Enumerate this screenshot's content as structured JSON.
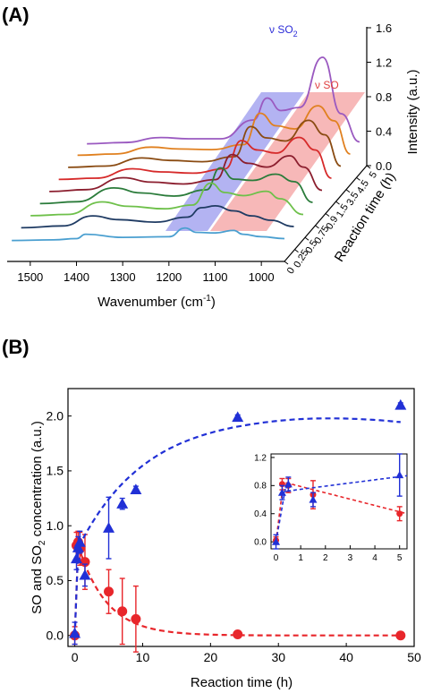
{
  "panel_a": {
    "label": "(A)",
    "xlabel_main": "Wavenumber (cm",
    "xlabel_sup": "-1",
    "xlabel_end": ")",
    "zlabel": "Intensity (a.u.)",
    "ylabel": "Reaction time (h)",
    "band_so2_prefix": "ν SO",
    "band_so2_sub": "2",
    "band_so": "ν SO",
    "x_ticks": [
      "1500",
      "1400",
      "1300",
      "1200",
      "1100",
      "1000"
    ],
    "z_ticks": [
      "0.0",
      "0.4",
      "0.8",
      "1.2",
      "1.6"
    ],
    "time_ticks": [
      "0",
      "0.25",
      "0.5",
      "0.75",
      "0.9",
      "1.5",
      "3.5",
      "4.5",
      "5"
    ],
    "colors": [
      "#4a9fd0",
      "#1f3b63",
      "#6ec04a",
      "#2a7b3a",
      "#8b1e2e",
      "#d62a2a",
      "#8a4b12",
      "#e0801f",
      "#9a59c0"
    ],
    "so2_band_color": "#9999ee",
    "so_band_color": "#f4a0a0"
  },
  "panel_b": {
    "label": "(B)",
    "ylabel_part1": "SO and SO",
    "ylabel_sub": "2",
    "ylabel_part2": " concentration (a.u.)",
    "xlabel": "Reaction time (h)",
    "x_ticks": [
      "0",
      "10",
      "20",
      "30",
      "40",
      "50"
    ],
    "y_ticks": [
      "0.0",
      "0.5",
      "1.0",
      "1.5",
      "2.0"
    ],
    "inset_x_ticks": [
      "0",
      "1",
      "2",
      "3",
      "4",
      "5"
    ],
    "inset_y_ticks": [
      "0.0",
      "0.4",
      "0.8",
      "1.2"
    ],
    "so_color": "#e8262b",
    "so2_color": "#2130d6"
  },
  "chart_data": [
    {
      "type": "line",
      "title": "",
      "xlabel": "Wavenumber (cm-1)",
      "ylabel": "Reaction time (h)",
      "zlabel": "Intensity (a.u.)",
      "xlim": [
        1550,
        950
      ],
      "zlim": [
        0,
        1.6
      ],
      "series": [
        {
          "name": "0",
          "x": [
            1540,
            1450,
            1400,
            1380,
            1300,
            1200,
            1165,
            1140,
            1100,
            1060,
            1040,
            1000,
            950
          ],
          "values": [
            0.02,
            0.03,
            0.05,
            0.12,
            0.07,
            0.08,
            0.22,
            0.15,
            0.14,
            0.18,
            0.12,
            0.08,
            0.05
          ]
        },
        {
          "name": "0.25",
          "x": [
            1540,
            1450,
            1385,
            1330,
            1250,
            1180,
            1150,
            1120,
            1080,
            1040,
            1000,
            950
          ],
          "values": [
            0.03,
            0.06,
            0.22,
            0.16,
            0.12,
            0.2,
            0.35,
            0.38,
            0.3,
            0.22,
            0.15,
            0.05
          ]
        },
        {
          "name": "0.5",
          "x": [
            1540,
            1460,
            1385,
            1330,
            1250,
            1190,
            1150,
            1120,
            1080,
            1030,
            1000,
            950
          ],
          "values": [
            0.03,
            0.05,
            0.25,
            0.18,
            0.14,
            0.2,
            0.55,
            0.4,
            0.35,
            0.42,
            0.3,
            0.05
          ]
        },
        {
          "name": "0.75",
          "x": [
            1540,
            1460,
            1380,
            1320,
            1250,
            1180,
            1150,
            1120,
            1080,
            1030,
            990,
            950
          ],
          "values": [
            0.03,
            0.06,
            0.28,
            0.2,
            0.15,
            0.25,
            0.6,
            0.42,
            0.4,
            0.5,
            0.38,
            0.05
          ]
        },
        {
          "name": "0.9",
          "x": [
            1540,
            1460,
            1380,
            1320,
            1250,
            1180,
            1145,
            1110,
            1070,
            1020,
            990,
            950
          ],
          "values": [
            0.03,
            0.06,
            0.25,
            0.18,
            0.15,
            0.22,
            0.62,
            0.48,
            0.42,
            0.6,
            0.42,
            0.05
          ]
        },
        {
          "name": "1.5",
          "x": [
            1540,
            1460,
            1380,
            1320,
            1250,
            1180,
            1145,
            1110,
            1070,
            1020,
            985,
            950
          ],
          "values": [
            0.03,
            0.05,
            0.2,
            0.15,
            0.13,
            0.2,
            0.65,
            0.5,
            0.45,
            0.7,
            0.5,
            0.05
          ]
        },
        {
          "name": "3.5",
          "x": [
            1540,
            1460,
            1380,
            1320,
            1250,
            1180,
            1145,
            1110,
            1070,
            1020,
            985,
            950
          ],
          "values": [
            0.03,
            0.05,
            0.18,
            0.14,
            0.12,
            0.2,
            0.68,
            0.5,
            0.45,
            0.78,
            0.55,
            0.05
          ]
        },
        {
          "name": "4.5",
          "x": [
            1540,
            1460,
            1380,
            1320,
            1250,
            1180,
            1145,
            1110,
            1070,
            1020,
            985,
            950
          ],
          "values": [
            0.03,
            0.05,
            0.16,
            0.13,
            0.12,
            0.2,
            0.7,
            0.5,
            0.45,
            0.82,
            0.58,
            0.05
          ]
        },
        {
          "name": "5",
          "x": [
            1540,
            1460,
            1380,
            1320,
            1250,
            1180,
            1150,
            1120,
            1080,
            1030,
            990,
            950
          ],
          "values": [
            0.02,
            0.04,
            0.12,
            0.1,
            0.1,
            0.4,
            0.75,
            0.55,
            0.6,
            1.4,
            0.5,
            0.05
          ]
        }
      ]
    },
    {
      "type": "scatter",
      "title": "",
      "xlabel": "Reaction time (h)",
      "ylabel": "SO and SO2 concentration (a.u.)",
      "xlim": [
        -1,
        50
      ],
      "ylim": [
        -0.1,
        2.25
      ],
      "series": [
        {
          "x": [
            0,
            0.25,
            0.5,
            0.75,
            1.5,
            5,
            7,
            9,
            24,
            48
          ],
          "values": [
            0.0,
            0.82,
            0.85,
            0.79,
            0.67,
            0.4,
            0.22,
            0.15,
            0.01,
            0.0
          ],
          "error": [
            0.08,
            0.12,
            0.1,
            0.15,
            0.25,
            0.2,
            0.3,
            0.3,
            0.02,
            0.02
          ]
        },
        {
          "x": [
            0,
            0.25,
            0.5,
            0.75,
            1.5,
            5,
            7,
            9,
            24,
            48
          ],
          "values": [
            0.02,
            0.7,
            0.8,
            0.85,
            0.55,
            0.98,
            1.2,
            1.33,
            1.99,
            2.1
          ],
          "error": [
            0.1,
            0.1,
            0.1,
            0.1,
            0.1,
            0.28,
            0.05,
            0.03,
            0.02,
            0.02
          ]
        }
      ]
    },
    {
      "type": "scatter",
      "title": "",
      "xlim": [
        -0.2,
        5.3
      ],
      "ylim": [
        -0.1,
        1.25
      ],
      "series": [
        {
          "x": [
            0,
            0.25,
            0.5,
            1.5,
            5
          ],
          "values": [
            0.02,
            0.82,
            0.8,
            0.67,
            0.4
          ],
          "error": [
            0.05,
            0.08,
            0.1,
            0.2,
            0.1
          ]
        },
        {
          "x": [
            0,
            0.25,
            0.5,
            1.5,
            5
          ],
          "values": [
            0.0,
            0.7,
            0.82,
            0.6,
            0.95
          ],
          "error": [
            0.1,
            0.1,
            0.1,
            0.1,
            0.3
          ]
        }
      ]
    }
  ]
}
